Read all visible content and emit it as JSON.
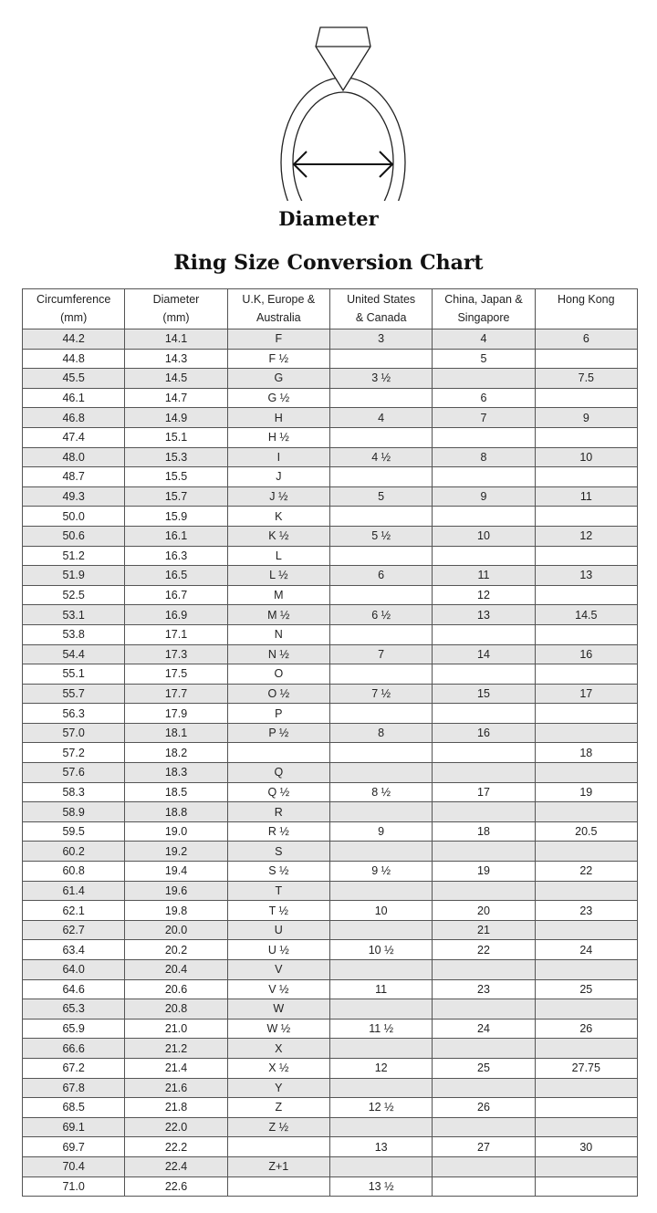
{
  "diagram_label": "Diameter",
  "title": "Ring Size Conversion Chart",
  "colors": {
    "stripe": "#e6e6e6",
    "border": "#555555"
  },
  "columns": [
    [
      "Circumference",
      "(mm)"
    ],
    [
      "Diameter",
      "(mm)"
    ],
    [
      "U.K, Europe &",
      "Australia"
    ],
    [
      "United States",
      "& Canada"
    ],
    [
      "China, Japan &",
      "Singapore"
    ],
    [
      "Hong Kong",
      ""
    ]
  ],
  "rows": [
    [
      "44.2",
      "14.1",
      "F",
      "3",
      "4",
      "6"
    ],
    [
      "44.8",
      "14.3",
      "F ½",
      "",
      "5",
      ""
    ],
    [
      "45.5",
      "14.5",
      "G",
      "3 ½",
      "",
      "7.5"
    ],
    [
      "46.1",
      "14.7",
      "G ½",
      "",
      "6",
      ""
    ],
    [
      "46.8",
      "14.9",
      "H",
      "4",
      "7",
      "9"
    ],
    [
      "47.4",
      "15.1",
      "H ½",
      "",
      "",
      ""
    ],
    [
      "48.0",
      "15.3",
      "I",
      "4 ½",
      "8",
      "10"
    ],
    [
      "48.7",
      "15.5",
      "J",
      "",
      "",
      ""
    ],
    [
      "49.3",
      "15.7",
      "J ½",
      "5",
      "9",
      "11"
    ],
    [
      "50.0",
      "15.9",
      "K",
      "",
      "",
      ""
    ],
    [
      "50.6",
      "16.1",
      "K ½",
      "5 ½",
      "10",
      "12"
    ],
    [
      "51.2",
      "16.3",
      "L",
      "",
      "",
      ""
    ],
    [
      "51.9",
      "16.5",
      "L ½",
      "6",
      "11",
      "13"
    ],
    [
      "52.5",
      "16.7",
      "M",
      "",
      "12",
      ""
    ],
    [
      "53.1",
      "16.9",
      "M ½",
      "6 ½",
      "13",
      "14.5"
    ],
    [
      "53.8",
      "17.1",
      "N",
      "",
      "",
      ""
    ],
    [
      "54.4",
      "17.3",
      "N ½",
      "7",
      "14",
      "16"
    ],
    [
      "55.1",
      "17.5",
      "O",
      "",
      "",
      ""
    ],
    [
      "55.7",
      "17.7",
      "O ½",
      "7 ½",
      "15",
      "17"
    ],
    [
      "56.3",
      "17.9",
      "P",
      "",
      "",
      ""
    ],
    [
      "57.0",
      "18.1",
      "P ½",
      "8",
      "16",
      ""
    ],
    [
      "57.2",
      "18.2",
      "",
      "",
      "",
      "18"
    ],
    [
      "57.6",
      "18.3",
      "Q",
      "",
      "",
      ""
    ],
    [
      "58.3",
      "18.5",
      "Q ½",
      "8 ½",
      "17",
      "19"
    ],
    [
      "58.9",
      "18.8",
      "R",
      "",
      "",
      ""
    ],
    [
      "59.5",
      "19.0",
      "R ½",
      "9",
      "18",
      "20.5"
    ],
    [
      "60.2",
      "19.2",
      "S",
      "",
      "",
      ""
    ],
    [
      "60.8",
      "19.4",
      "S ½",
      "9 ½",
      "19",
      "22"
    ],
    [
      "61.4",
      "19.6",
      "T",
      "",
      "",
      ""
    ],
    [
      "62.1",
      "19.8",
      "T ½",
      "10",
      "20",
      "23"
    ],
    [
      "62.7",
      "20.0",
      "U",
      "",
      "21",
      ""
    ],
    [
      "63.4",
      "20.2",
      "U ½",
      "10 ½",
      "22",
      "24"
    ],
    [
      "64.0",
      "20.4",
      "V",
      "",
      "",
      ""
    ],
    [
      "64.6",
      "20.6",
      "V ½",
      "11",
      "23",
      "25"
    ],
    [
      "65.3",
      "20.8",
      "W",
      "",
      "",
      ""
    ],
    [
      "65.9",
      "21.0",
      "W ½",
      "11 ½",
      "24",
      "26"
    ],
    [
      "66.6",
      "21.2",
      "X",
      "",
      "",
      ""
    ],
    [
      "67.2",
      "21.4",
      "X ½",
      "12",
      "25",
      "27.75"
    ],
    [
      "67.8",
      "21.6",
      "Y",
      "",
      "",
      ""
    ],
    [
      "68.5",
      "21.8",
      "Z",
      "12 ½",
      "26",
      ""
    ],
    [
      "69.1",
      "22.0",
      "Z ½",
      "",
      "",
      ""
    ],
    [
      "69.7",
      "22.2",
      "",
      "13",
      "27",
      "30"
    ],
    [
      "70.4",
      "22.4",
      "Z+1",
      "",
      "",
      ""
    ],
    [
      "71.0",
      "22.6",
      "",
      "13 ½",
      "",
      ""
    ]
  ]
}
